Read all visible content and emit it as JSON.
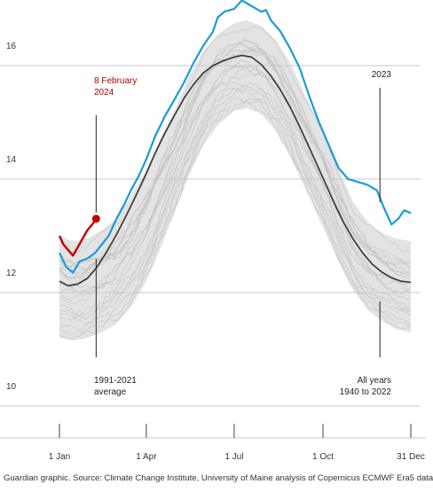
{
  "chart_data": {
    "type": "line",
    "title": "",
    "xlabel": "",
    "ylabel": "",
    "xlim": [
      1,
      365
    ],
    "ylim": [
      10,
      17
    ],
    "x_ticks": [
      {
        "day": 1,
        "label": "1 Jan"
      },
      {
        "day": 91,
        "label": "1 Apr"
      },
      {
        "day": 182,
        "label": "1 Jul"
      },
      {
        "day": 274,
        "label": "1 Oct"
      },
      {
        "day": 365,
        "label": "31 Dec"
      }
    ],
    "y_ticks": [
      {
        "value": 10,
        "label": "10"
      },
      {
        "value": 12,
        "label": "12"
      },
      {
        "value": 14,
        "label": "14"
      },
      {
        "value": 16,
        "label": "16"
      }
    ],
    "grid": "horizontal",
    "series": [
      {
        "name": "All years 1940 to 2022",
        "color": "#cccccc",
        "envelope": {
          "x": [
            1,
            15,
            30,
            45,
            60,
            75,
            91,
            105,
            120,
            135,
            150,
            165,
            182,
            195,
            210,
            225,
            240,
            255,
            274,
            290,
            305,
            320,
            335,
            350,
            365
          ],
          "min": [
            11.2,
            11.15,
            11.2,
            11.3,
            11.45,
            11.75,
            12.2,
            12.75,
            13.4,
            14.05,
            14.6,
            14.95,
            15.2,
            15.25,
            15.15,
            14.85,
            14.4,
            13.85,
            13.15,
            12.55,
            12.05,
            11.7,
            11.5,
            11.35,
            11.3
          ],
          "max": [
            13.0,
            12.9,
            12.95,
            13.1,
            13.3,
            13.7,
            14.15,
            14.7,
            15.2,
            15.8,
            16.25,
            16.55,
            16.75,
            16.8,
            16.7,
            16.45,
            16.05,
            15.5,
            14.85,
            14.2,
            13.6,
            13.25,
            13.05,
            12.95,
            12.9
          ]
        }
      },
      {
        "name": "1991-2021 average",
        "color": "#333333",
        "x": [
          1,
          10,
          20,
          30,
          40,
          50,
          60,
          70,
          80,
          91,
          100,
          110,
          120,
          130,
          140,
          150,
          160,
          170,
          182,
          190,
          200,
          210,
          220,
          230,
          240,
          250,
          260,
          274,
          285,
          295,
          305,
          315,
          325,
          335,
          345,
          355,
          365
        ],
        "values": [
          12.2,
          12.12,
          12.15,
          12.25,
          12.45,
          12.72,
          13.02,
          13.35,
          13.7,
          14.1,
          14.45,
          14.8,
          15.12,
          15.42,
          15.67,
          15.87,
          16.0,
          16.08,
          16.15,
          16.18,
          16.15,
          16.02,
          15.82,
          15.57,
          15.27,
          14.92,
          14.55,
          14.02,
          13.6,
          13.25,
          12.95,
          12.7,
          12.5,
          12.36,
          12.26,
          12.2,
          12.18
        ]
      },
      {
        "name": "2023",
        "color": "#1a9bd7",
        "x": [
          1,
          8,
          15,
          22,
          30,
          38,
          45,
          52,
          60,
          68,
          75,
          83,
          91,
          100,
          110,
          120,
          130,
          140,
          150,
          160,
          165,
          172,
          182,
          190,
          200,
          210,
          215,
          220,
          230,
          240,
          250,
          260,
          270,
          280,
          290,
          300,
          310,
          320,
          330,
          337,
          345,
          352,
          358,
          365
        ],
        "values": [
          12.7,
          12.45,
          12.35,
          12.55,
          12.6,
          12.7,
          12.85,
          13.0,
          13.3,
          13.55,
          13.8,
          14.05,
          14.35,
          14.75,
          15.1,
          15.4,
          15.7,
          16.05,
          16.35,
          16.6,
          16.85,
          16.95,
          17.0,
          17.15,
          17.05,
          16.95,
          16.98,
          16.8,
          16.6,
          16.3,
          15.95,
          15.45,
          15.0,
          14.6,
          14.2,
          14.0,
          13.95,
          13.9,
          13.8,
          13.5,
          13.2,
          13.3,
          13.45,
          13.4
        ]
      },
      {
        "name": "2024",
        "color": "#c00000",
        "x": [
          1,
          5,
          10,
          15,
          20,
          25,
          30,
          35,
          39
        ],
        "values": [
          13.0,
          12.85,
          12.75,
          12.65,
          12.8,
          12.95,
          13.1,
          13.2,
          13.3
        ]
      }
    ],
    "annotations": [
      {
        "text": [
          "8 February",
          "2024"
        ],
        "day": 39,
        "value": 13.3,
        "color": "#b30000"
      },
      {
        "text": [
          "2023"
        ],
        "day": 333
      },
      {
        "text": [
          "1991-2021",
          "average"
        ],
        "day": 39
      },
      {
        "text": [
          "All years",
          "1940 to 2022"
        ],
        "day": 333
      }
    ]
  },
  "source": "Guardian graphic. Source: Climate Change Institute, University of Maine analysis of Copernicus ECMWF Era5 data"
}
